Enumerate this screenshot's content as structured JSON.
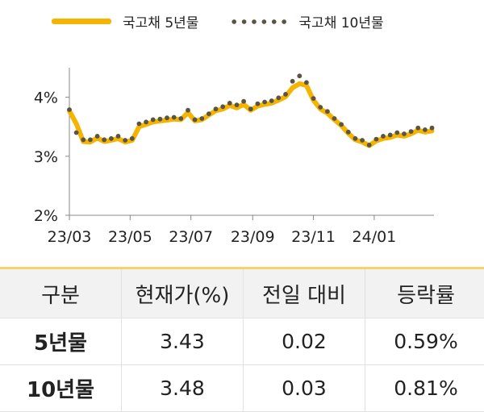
{
  "legend": {
    "series5": "국고채 5년물",
    "series10": "국고채 10년물"
  },
  "colors": {
    "series5": "#f5b400",
    "series10": "#5a5346",
    "axis": "#888888",
    "table_top_border": "#f6d36a",
    "header_bg": "#f2f2f2"
  },
  "chart_data": {
    "type": "line",
    "x": [
      "2023-03-01",
      "2023-03-08",
      "2023-03-15",
      "2023-03-22",
      "2023-03-29",
      "2023-04-05",
      "2023-04-12",
      "2023-04-19",
      "2023-04-26",
      "2023-05-03",
      "2023-05-10",
      "2023-05-17",
      "2023-05-24",
      "2023-05-31",
      "2023-06-07",
      "2023-06-14",
      "2023-06-21",
      "2023-06-28",
      "2023-07-05",
      "2023-07-12",
      "2023-07-19",
      "2023-07-26",
      "2023-08-02",
      "2023-08-09",
      "2023-08-16",
      "2023-08-23",
      "2023-08-30",
      "2023-09-06",
      "2023-09-13",
      "2023-09-20",
      "2023-09-27",
      "2023-10-04",
      "2023-10-11",
      "2023-10-18",
      "2023-10-25",
      "2023-11-01",
      "2023-11-08",
      "2023-11-15",
      "2023-11-22",
      "2023-11-29",
      "2023-12-06",
      "2023-12-13",
      "2023-12-20",
      "2023-12-27",
      "2024-01-03",
      "2024-01-10",
      "2024-01-17",
      "2024-01-24",
      "2024-01-31",
      "2024-02-07",
      "2024-02-14",
      "2024-02-21",
      "2024-02-28"
    ],
    "series": [
      {
        "name": "국고채 5년물",
        "values": [
          3.77,
          3.55,
          3.25,
          3.24,
          3.31,
          3.25,
          3.27,
          3.3,
          3.24,
          3.27,
          3.5,
          3.54,
          3.58,
          3.6,
          3.61,
          3.63,
          3.62,
          3.74,
          3.6,
          3.62,
          3.7,
          3.77,
          3.8,
          3.86,
          3.82,
          3.88,
          3.78,
          3.85,
          3.88,
          3.9,
          3.95,
          4.01,
          4.16,
          4.23,
          4.2,
          3.95,
          3.8,
          3.73,
          3.62,
          3.52,
          3.39,
          3.28,
          3.24,
          3.18,
          3.26,
          3.3,
          3.32,
          3.36,
          3.34,
          3.38,
          3.44,
          3.41,
          3.43
        ]
      },
      {
        "name": "국고채 10년물",
        "values": [
          3.79,
          3.4,
          3.28,
          3.28,
          3.34,
          3.28,
          3.3,
          3.34,
          3.27,
          3.3,
          3.55,
          3.58,
          3.62,
          3.63,
          3.65,
          3.66,
          3.64,
          3.78,
          3.62,
          3.64,
          3.72,
          3.8,
          3.84,
          3.9,
          3.87,
          3.93,
          3.8,
          3.89,
          3.92,
          3.94,
          3.99,
          4.05,
          4.27,
          4.36,
          4.25,
          3.98,
          3.83,
          3.76,
          3.64,
          3.54,
          3.41,
          3.3,
          3.27,
          3.19,
          3.29,
          3.34,
          3.36,
          3.4,
          3.38,
          3.42,
          3.48,
          3.45,
          3.48
        ]
      }
    ],
    "ylim": [
      2,
      4.5
    ],
    "yticks": [
      "2%",
      "3%",
      "4%"
    ],
    "xticks": [
      "23/03",
      "23/05",
      "23/07",
      "23/09",
      "23/11",
      "24/01"
    ],
    "xtick_dates": [
      "2023-03-01",
      "2023-05-01",
      "2023-07-01",
      "2023-09-01",
      "2023-11-01",
      "2024-01-01"
    ],
    "xlim": [
      "2023-03-01",
      "2024-03-01"
    ],
    "grid": false,
    "legend_position": "top"
  },
  "table": {
    "headers": [
      "구분",
      "현재가(%)",
      "전일 대비",
      "등락률"
    ],
    "rows": [
      [
        "5년물",
        "3.43",
        "0.02",
        "0.59%"
      ],
      [
        "10년물",
        "3.48",
        "0.03",
        "0.81%"
      ]
    ]
  }
}
